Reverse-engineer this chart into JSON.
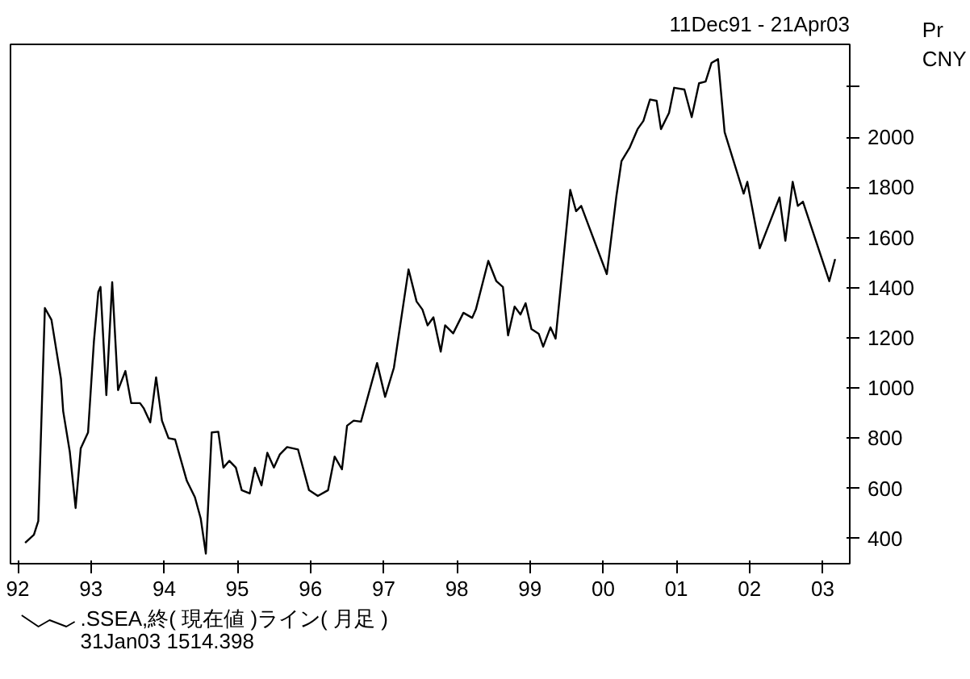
{
  "chart_data": {
    "type": "line",
    "title": "11Dec91 - 21Apr03",
    "ylabel": "Pr CNY",
    "x": [
      1992.1,
      1992.22,
      1992.28,
      1992.37,
      1992.46,
      1992.53,
      1992.59,
      1992.62,
      1992.71,
      1992.79,
      1992.86,
      1992.96,
      1993.04,
      1993.1,
      1993.13,
      1993.21,
      1993.29,
      1993.37,
      1993.47,
      1993.55,
      1993.67,
      1993.72,
      1993.81,
      1993.89,
      1993.97,
      1994.06,
      1994.15,
      1994.31,
      1994.42,
      1994.5,
      1994.57,
      1994.65,
      1994.74,
      1994.81,
      1994.89,
      1994.98,
      1995.06,
      1995.17,
      1995.24,
      1995.33,
      1995.41,
      1995.5,
      1995.58,
      1995.68,
      1995.83,
      1995.98,
      1996.1,
      1996.24,
      1996.33,
      1996.43,
      1996.5,
      1996.59,
      1996.69,
      1996.91,
      1997.02,
      1997.14,
      1997.34,
      1997.45,
      1997.53,
      1997.6,
      1997.68,
      1997.78,
      1997.84,
      1997.95,
      1998.09,
      1998.21,
      1998.26,
      1998.43,
      1998.54,
      1998.63,
      1998.7,
      1998.79,
      1998.87,
      1998.94,
      1999.02,
      1999.12,
      1999.18,
      1999.28,
      1999.35,
      1999.55,
      1999.63,
      1999.7,
      2000.05,
      2000.18,
      2000.25,
      2000.36,
      2000.47,
      2000.55,
      2000.64,
      2000.73,
      2000.79,
      2000.9,
      2000.97,
      2001.11,
      2001.21,
      2001.31,
      2001.4,
      2001.48,
      2001.57,
      2001.66,
      2001.92,
      2001.97,
      2002.14,
      2002.41,
      2002.49,
      2002.59,
      2002.66,
      2002.73,
      2003.09,
      2003.17
    ],
    "series": [
      {
        "name": ".SSEA,終( 現在値 )ライン( 月足 )",
        "color": "#000000",
        "values": [
          383,
          415,
          470,
          1319,
          1272,
          1145,
          1036,
          908,
          747,
          522,
          760,
          823,
          1185,
          1383,
          1403,
          972,
          1422,
          992,
          1068,
          940,
          940,
          920,
          863,
          1043,
          870,
          800,
          795,
          630,
          565,
          480,
          340,
          823,
          826,
          683,
          710,
          683,
          593,
          580,
          683,
          612,
          742,
          683,
          735,
          765,
          755,
          593,
          570,
          593,
          727,
          676,
          850,
          870,
          866,
          1100,
          965,
          1081,
          1473,
          1345,
          1313,
          1250,
          1282,
          1145,
          1250,
          1218,
          1300,
          1280,
          1313,
          1507,
          1426,
          1403,
          1210,
          1325,
          1293,
          1338,
          1235,
          1216,
          1165,
          1242,
          1197,
          1790,
          1705,
          1726,
          1454,
          1764,
          1904,
          1957,
          2032,
          2065,
          2150,
          2145,
          2032,
          2097,
          2197,
          2190,
          2080,
          2215,
          2222,
          2296,
          2311,
          2020,
          1775,
          1822,
          1557,
          1760,
          1587,
          1822,
          1726,
          1743,
          1426,
          1514
        ]
      }
    ],
    "xlim": [
      1991.9,
      2003.37
    ],
    "ylim": [
      300,
      2370
    ],
    "xticks": [
      {
        "value": 1992,
        "label": "92"
      },
      {
        "value": 1993,
        "label": "93"
      },
      {
        "value": 1994,
        "label": "94"
      },
      {
        "value": 1995,
        "label": "95"
      },
      {
        "value": 1996,
        "label": "96"
      },
      {
        "value": 1997,
        "label": "97"
      },
      {
        "value": 1998,
        "label": "98"
      },
      {
        "value": 1999,
        "label": "99"
      },
      {
        "value": 2000,
        "label": "00"
      },
      {
        "value": 2001,
        "label": "01"
      },
      {
        "value": 2002,
        "label": "02"
      },
      {
        "value": 2003,
        "label": "03"
      }
    ],
    "yticks": [
      400,
      600,
      800,
      1000,
      1200,
      1400,
      1600,
      1800,
      2000,
      {
        "value": 2200,
        "label": null
      }
    ],
    "annotations": [
      "31Jan03 1514.398"
    ],
    "legend": "bottom left",
    "grid": false,
    "marker": "none",
    "line_style": "solid"
  }
}
